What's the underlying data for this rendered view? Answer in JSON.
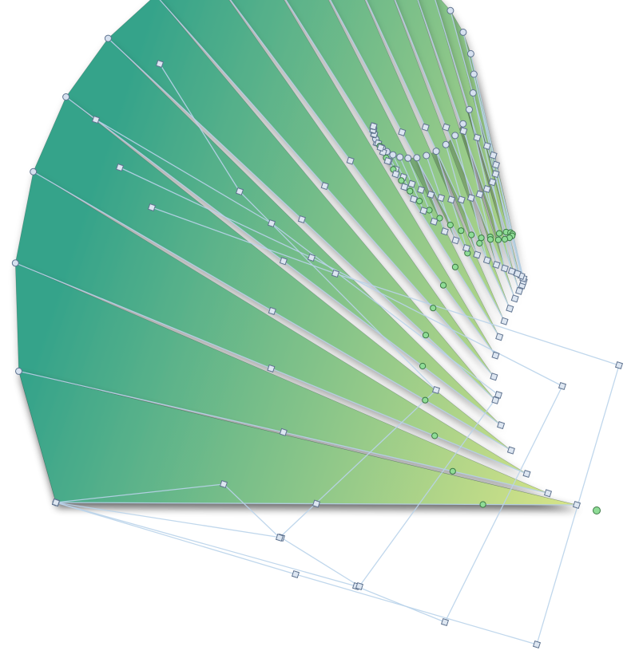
{
  "canvas": {
    "background": "#ffffff"
  },
  "figure": {
    "shape": "wave-spiral",
    "repeat_count": 36,
    "fill_gradient": {
      "start": "#35a38a",
      "end": "#d6e488"
    },
    "guide_color": "#b9d3ea",
    "handle_color": "#d6e1ef",
    "handle_stroke": "#5f7390",
    "midpoint_handle_color": "#8fdc96",
    "shadow": true
  }
}
